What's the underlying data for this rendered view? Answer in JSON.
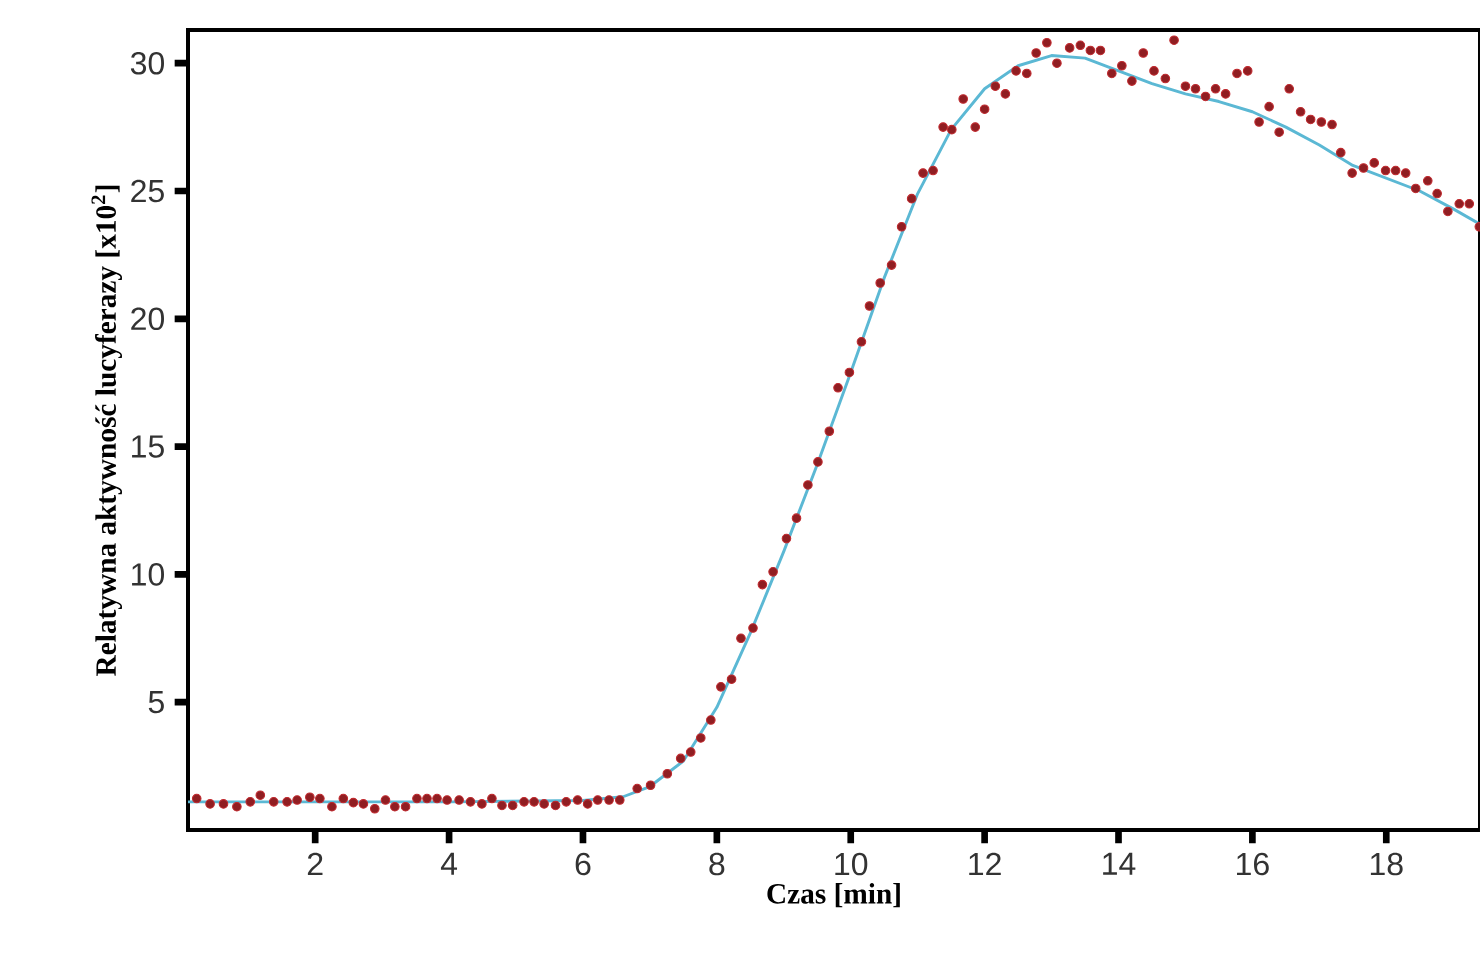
{
  "chart_data": {
    "type": "scatter",
    "xlabel": "Czas [min]",
    "ylabel": "Relatywna aktywność lucyferazy [x10$^{2}$]",
    "xlim": [
      0.1,
      19.4
    ],
    "ylim": [
      0,
      31.3
    ],
    "xticks": [
      2,
      4,
      6,
      8,
      10,
      12,
      14,
      16,
      18
    ],
    "yticks": [
      5,
      10,
      15,
      20,
      25,
      30
    ],
    "series": [
      {
        "color": "#c0282d",
        "marker": "circle",
        "x": [
          0.23,
          0.43,
          0.63,
          0.83,
          1.03,
          1.18,
          1.38,
          1.58,
          1.73,
          1.92,
          2.07,
          2.25,
          2.42,
          2.57,
          2.72,
          2.89,
          3.05,
          3.19,
          3.35,
          3.52,
          3.67,
          3.82,
          3.97,
          4.15,
          4.32,
          4.49,
          4.64,
          4.79,
          4.95,
          5.12,
          5.27,
          5.42,
          5.59,
          5.75,
          5.92,
          6.07,
          6.22,
          6.39,
          6.55,
          6.81,
          7.01,
          7.26,
          7.46,
          7.61,
          7.76,
          7.91,
          8.06,
          8.22,
          8.36,
          8.54,
          8.68,
          8.84,
          9.04,
          9.19,
          9.36,
          9.51,
          9.68,
          9.81,
          9.98,
          10.16,
          10.28,
          10.44,
          10.61,
          10.76,
          10.91,
          11.08,
          11.23,
          11.38,
          11.51,
          11.68,
          11.86,
          12.0,
          12.16,
          12.31,
          12.47,
          12.63,
          12.77,
          12.93,
          13.08,
          13.27,
          13.43,
          13.58,
          13.73,
          13.9,
          14.05,
          14.2,
          14.37,
          14.53,
          14.7,
          14.83,
          15.0,
          15.15,
          15.3,
          15.45,
          15.6,
          15.77,
          15.93,
          16.1,
          16.25,
          16.4,
          16.55,
          16.72,
          16.87,
          17.03,
          17.19,
          17.32,
          17.49,
          17.66,
          17.82,
          17.99,
          18.14,
          18.29,
          18.44,
          18.62,
          18.76,
          18.92,
          19.09,
          19.24,
          19.39
        ],
        "values": [
          1.23,
          1.02,
          1.02,
          0.91,
          1.1,
          1.36,
          1.1,
          1.1,
          1.17,
          1.28,
          1.23,
          0.91,
          1.23,
          1.07,
          1.02,
          0.83,
          1.17,
          0.91,
          0.91,
          1.23,
          1.23,
          1.23,
          1.17,
          1.17,
          1.1,
          1.02,
          1.23,
          0.96,
          0.96,
          1.1,
          1.1,
          1.02,
          0.96,
          1.1,
          1.17,
          1.02,
          1.17,
          1.17,
          1.17,
          1.62,
          1.75,
          2.2,
          2.8,
          3.05,
          3.6,
          4.3,
          5.6,
          5.9,
          7.5,
          7.9,
          9.6,
          10.1,
          11.4,
          12.2,
          13.5,
          14.4,
          15.6,
          17.3,
          17.9,
          19.1,
          20.5,
          21.4,
          22.1,
          23.6,
          24.7,
          25.7,
          25.8,
          27.5,
          27.4,
          28.6,
          27.5,
          28.2,
          29.1,
          28.8,
          29.7,
          29.6,
          30.4,
          30.8,
          30.0,
          30.6,
          30.7,
          30.5,
          30.5,
          29.6,
          29.9,
          29.3,
          30.4,
          29.7,
          29.4,
          30.9,
          29.1,
          29.0,
          28.7,
          29.0,
          28.8,
          29.6,
          29.7,
          27.7,
          28.3,
          27.3,
          29.0,
          28.1,
          27.8,
          27.7,
          27.6,
          26.5,
          25.7,
          25.9,
          26.1,
          25.8,
          25.8,
          25.7,
          25.1,
          25.4,
          24.9,
          24.2,
          24.5,
          24.5,
          23.6
        ]
      },
      {
        "type": "line",
        "color": "#5bb8d4",
        "marker": "none",
        "x": [
          0.1,
          2,
          4,
          6,
          6.6,
          7,
          7.5,
          8,
          8.5,
          9,
          9.5,
          10,
          10.5,
          11,
          11.5,
          12,
          12.5,
          13,
          13.5,
          14,
          14.5,
          15,
          15.5,
          16,
          16.5,
          17,
          17.5,
          18,
          18.5,
          19,
          19.4
        ],
        "values": [
          1.1,
          1.1,
          1.1,
          1.15,
          1.3,
          1.7,
          2.7,
          4.8,
          7.7,
          10.9,
          14.3,
          17.9,
          21.6,
          24.9,
          27.4,
          29.0,
          29.9,
          30.3,
          30.2,
          29.7,
          29.2,
          28.8,
          28.5,
          28.1,
          27.5,
          26.8,
          26.0,
          25.5,
          25.0,
          24.3,
          23.7
        ]
      }
    ]
  }
}
